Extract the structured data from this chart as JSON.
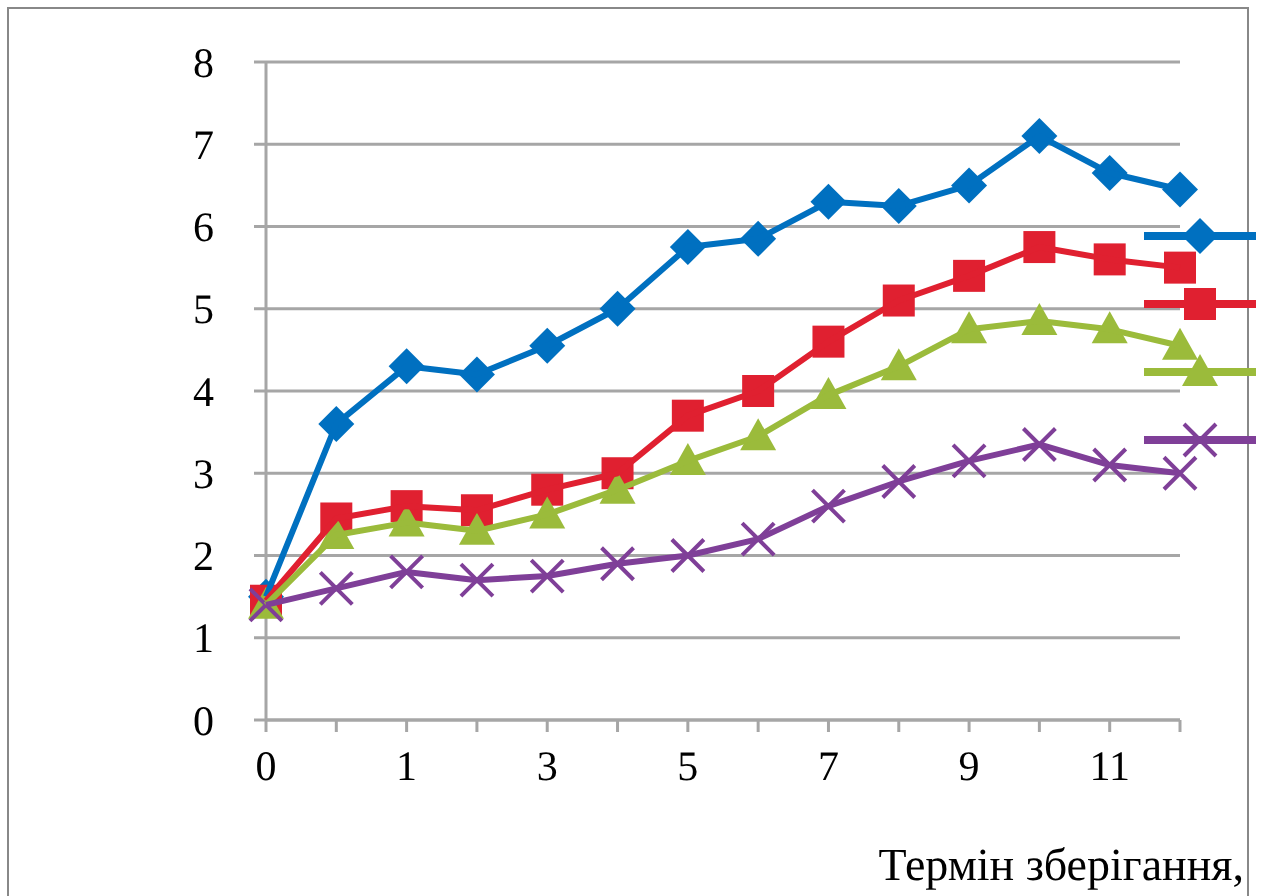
{
  "chart_data": {
    "type": "line",
    "xlabel": "Термін зберігання,",
    "categories": [
      "0",
      null,
      "1",
      null,
      "3",
      null,
      "5",
      null,
      "7",
      null,
      "9",
      null,
      "11",
      null
    ],
    "ylim": [
      0,
      8
    ],
    "yticks": [
      0,
      1,
      2,
      3,
      4,
      5,
      6,
      7,
      8
    ],
    "grid": "y",
    "line_style": "solid",
    "series": [
      {
        "color": "#0070c0",
        "marker": "diamond",
        "values": [
          1.5,
          3.6,
          4.3,
          4.2,
          4.55,
          5,
          5.75,
          5.85,
          6.3,
          6.25,
          6.5,
          7.1,
          6.65,
          6.45
        ]
      },
      {
        "color": "#e02030",
        "marker": "square",
        "values": [
          1.45,
          2.45,
          2.6,
          2.55,
          2.8,
          3,
          3.7,
          4,
          4.6,
          5.1,
          5.4,
          5.75,
          5.6,
          5.5
        ]
      },
      {
        "color": "#9bbb3b",
        "marker": "triangle",
        "values": [
          1.4,
          2.25,
          2.4,
          2.3,
          2.5,
          2.8,
          3.15,
          3.45,
          3.95,
          4.3,
          4.75,
          4.85,
          4.75,
          4.55
        ]
      },
      {
        "color": "#7f3f98",
        "marker": "cross",
        "values": [
          1.4,
          1.6,
          1.8,
          1.7,
          1.75,
          1.9,
          2,
          2.2,
          2.6,
          2.9,
          3.15,
          3.35,
          3.1,
          3
        ]
      }
    ]
  }
}
